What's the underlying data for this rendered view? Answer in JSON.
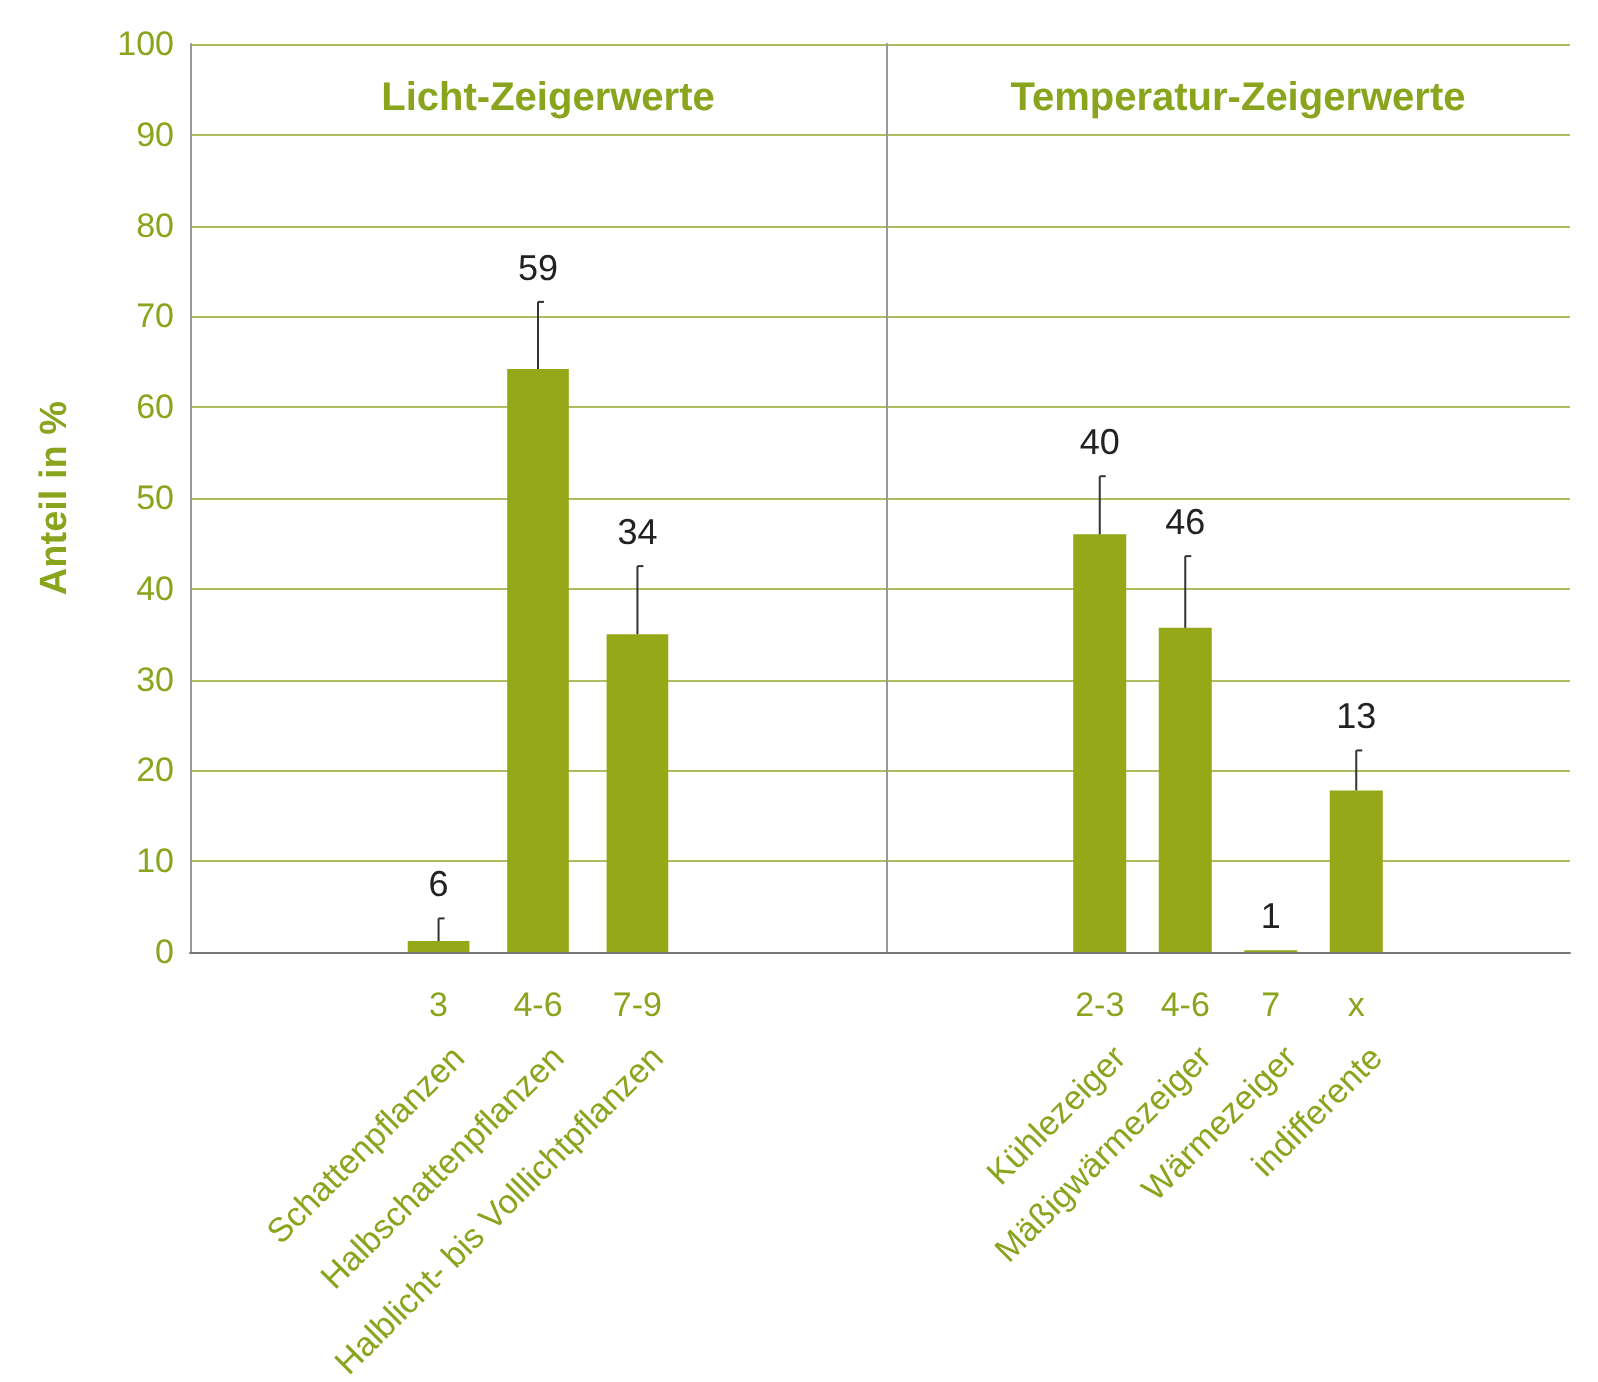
{
  "chart_data": [
    {
      "type": "bar",
      "title": "Licht-Zeigerwerte",
      "ylabel": "Anteil in %",
      "categories": [
        null,
        null,
        "3",
        "4-6",
        "7-9",
        null,
        null
      ],
      "values": [
        null,
        null,
        1.2,
        64.2,
        35,
        null,
        null
      ],
      "errors": [
        null,
        null,
        [
          1.2,
          3.7
        ],
        [
          64.2,
          71.6
        ],
        [
          35,
          42.5
        ],
        null,
        null
      ],
      "color": "#95a817",
      "ylim": [
        0,
        100
      ],
      "yticks": [
        0,
        10,
        20,
        30,
        40,
        50,
        60,
        70,
        80,
        90,
        100
      ],
      "grid": "y",
      "annotations": [
        "Schattenpflanzen",
        "Halbschattenpflanzen",
        "Halblicht- bis Volllichtpflanzen",
        {
          "text": "6",
          "x": "3",
          "y": 3.7
        },
        {
          "text": "59",
          "x": "4-6",
          "y": 71.6
        },
        {
          "text": "34",
          "x": "7-9",
          "y": 42.5
        }
      ]
    },
    {
      "type": "bar",
      "title": "Temperatur-Zeigerwerte",
      "categories": [
        null,
        null,
        "2-3",
        "4-6",
        "7",
        "x",
        null,
        null
      ],
      "values": [
        null,
        null,
        46,
        35.7,
        0.2,
        17.8,
        null,
        null
      ],
      "errors": [
        null,
        null,
        [
          46,
          52.4
        ],
        [
          35.7,
          43.6
        ],
        null,
        [
          17.8,
          22.2
        ],
        null,
        null
      ],
      "color": "#95a817",
      "ylim": [
        0,
        100
      ],
      "yticks": [
        0,
        10,
        20,
        30,
        40,
        50,
        60,
        70,
        80,
        90,
        100
      ],
      "grid": "y",
      "tick_labels": "x",
      "annotations": [
        "Kühlezeiger",
        "Mäßigwärmezeiger",
        "Wärmezeiger",
        "indifferente",
        {
          "text": "40",
          "x": "2-3",
          "y": 52.4
        },
        {
          "text": "46",
          "x": "4-6",
          "y": 43.6
        },
        {
          "text": "1",
          "x": "7",
          "y": 0.2
        },
        {
          "text": "13",
          "x": "x",
          "y": 22.2
        }
      ]
    }
  ]
}
